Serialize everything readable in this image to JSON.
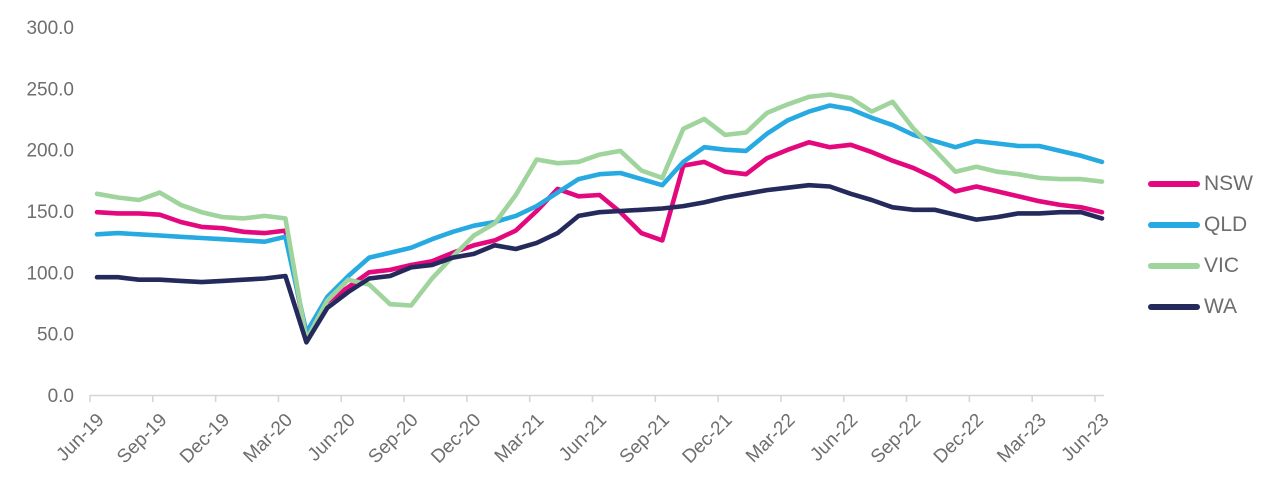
{
  "chart_data": {
    "type": "line",
    "title": "",
    "ylim": [
      0,
      300
    ],
    "grid": false,
    "legend_position": "right",
    "axis_color": "#d6d6d6",
    "text_color": "#6e6e6e",
    "yticks": [
      0,
      50,
      100,
      150,
      200,
      250,
      300
    ],
    "ytick_labels": [
      "0.0",
      "50.0",
      "100.0",
      "150.0",
      "200.0",
      "250.0",
      "300.0"
    ],
    "xtick_labels": [
      "Jun-19",
      "Sep-19",
      "Dec-19",
      "Mar-20",
      "Jun-20",
      "Sep-20",
      "Dec-20",
      "Mar-21",
      "Jun-21",
      "Sep-21",
      "Dec-21",
      "Mar-22",
      "Jun-22",
      "Sep-22",
      "Dec-22",
      "Mar-23",
      "Jun-23"
    ],
    "categories": [
      "Jun-19",
      "Jul-19",
      "Aug-19",
      "Sep-19",
      "Oct-19",
      "Nov-19",
      "Dec-19",
      "Jan-20",
      "Feb-20",
      "Mar-20",
      "Apr-20",
      "May-20",
      "Jun-20",
      "Jul-20",
      "Aug-20",
      "Sep-20",
      "Oct-20",
      "Nov-20",
      "Dec-20",
      "Jan-21",
      "Feb-21",
      "Mar-21",
      "Apr-21",
      "May-21",
      "Jun-21",
      "Jul-21",
      "Aug-21",
      "Sep-21",
      "Oct-21",
      "Nov-21",
      "Dec-21",
      "Jan-22",
      "Feb-22",
      "Mar-22",
      "Apr-22",
      "May-22",
      "Jun-22",
      "Jul-22",
      "Aug-22",
      "Sep-22",
      "Oct-22",
      "Nov-22",
      "Dec-22",
      "Jan-23",
      "Feb-23",
      "Mar-23",
      "Apr-23",
      "May-23",
      "Jun-23"
    ],
    "series": [
      {
        "name": "NSW",
        "color": "#e4087e",
        "values": [
          149,
          148,
          148,
          147,
          141,
          137,
          136,
          133,
          132,
          134,
          47,
          76,
          88,
          100,
          102,
          106,
          109,
          116,
          122,
          126,
          134,
          150,
          168,
          162,
          163,
          149,
          132,
          126,
          187,
          190,
          182,
          180,
          193,
          200,
          206,
          202,
          204,
          198,
          191,
          185,
          177,
          166,
          170,
          166,
          162,
          158,
          155,
          153,
          149
        ]
      },
      {
        "name": "QLD",
        "color": "#27aae1",
        "values": [
          131,
          132,
          131,
          130,
          129,
          128,
          127,
          126,
          125,
          129,
          51,
          80,
          97,
          112,
          116,
          120,
          127,
          133,
          138,
          141,
          146,
          154,
          165,
          176,
          180,
          181,
          176,
          171,
          190,
          202,
          200,
          199,
          213,
          224,
          231,
          236,
          233,
          226,
          220,
          212,
          207,
          202,
          207,
          205,
          203,
          203,
          199,
          195,
          190
        ]
      },
      {
        "name": "VIC",
        "color": "#9fd49c",
        "values": [
          164,
          161,
          159,
          165,
          155,
          149,
          145,
          144,
          146,
          144,
          45,
          77,
          94,
          90,
          74,
          73,
          95,
          113,
          130,
          140,
          163,
          192,
          189,
          190,
          196,
          199,
          183,
          177,
          217,
          225,
          212,
          214,
          230,
          237,
          243,
          245,
          242,
          231,
          239,
          217,
          200,
          182,
          186,
          182,
          180,
          177,
          176,
          176,
          174
        ]
      },
      {
        "name": "WA",
        "color": "#242a5c",
        "values": [
          96,
          96,
          94,
          94,
          93,
          92,
          93,
          94,
          95,
          97,
          43,
          71,
          84,
          95,
          97,
          104,
          106,
          112,
          115,
          122,
          119,
          124,
          132,
          146,
          149,
          150,
          151,
          152,
          154,
          157,
          161,
          164,
          167,
          169,
          171,
          170,
          164,
          159,
          153,
          151,
          151,
          147,
          143,
          145,
          148,
          148,
          149,
          149,
          144
        ]
      }
    ]
  }
}
